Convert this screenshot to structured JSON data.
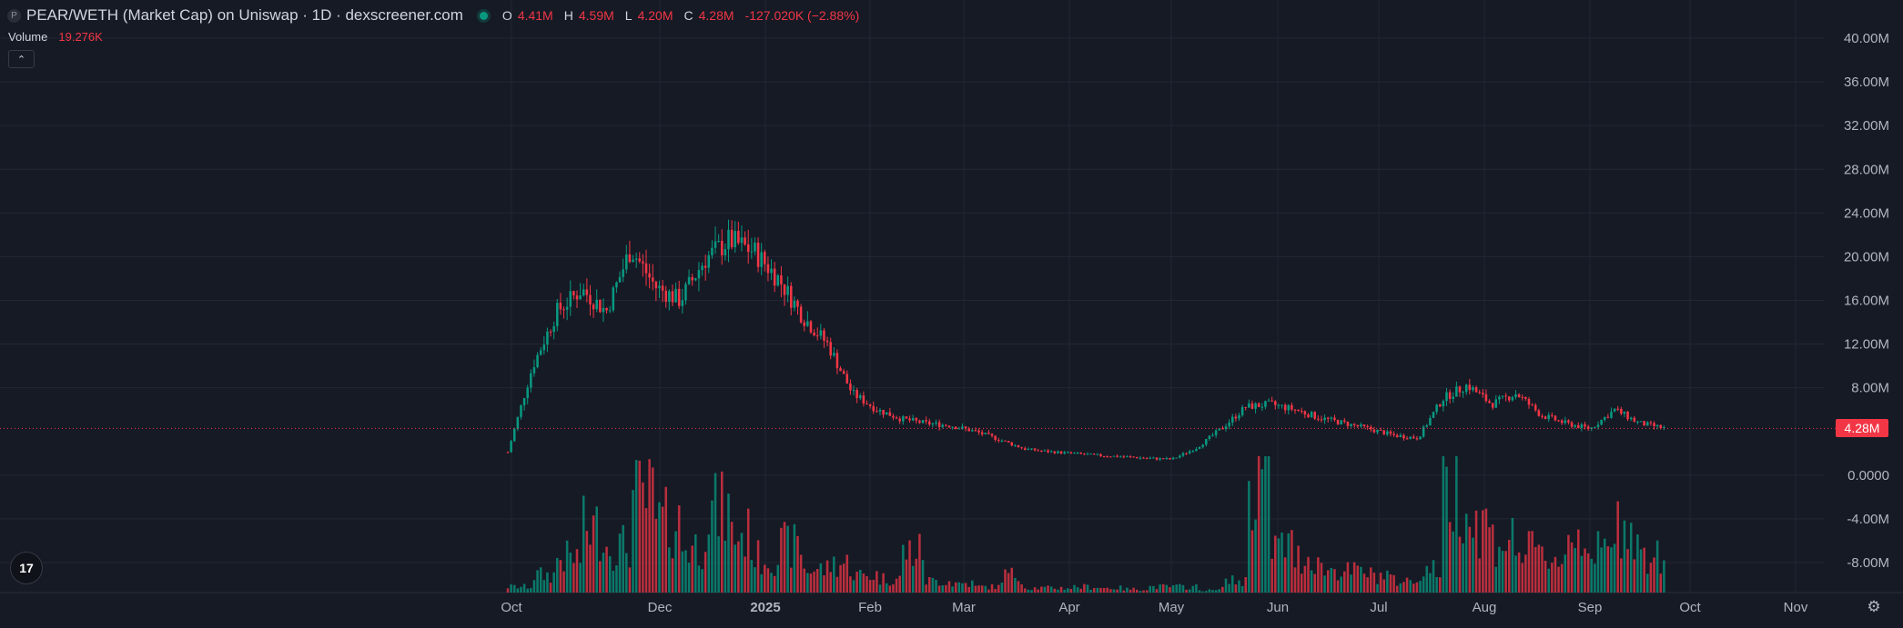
{
  "legend": {
    "token_icon": "P",
    "title": "PEAR/WETH (Market Cap) on Uniswap · 1D · dexscreener.com",
    "o_label": "O",
    "o_value": "4.41M",
    "h_label": "H",
    "h_value": "4.59M",
    "l_label": "L",
    "l_value": "4.20M",
    "c_label": "C",
    "c_value": "4.28M",
    "change": "-127.020K (−2.88%)"
  },
  "volume_legend": {
    "label": "Volume",
    "value": "19.276K"
  },
  "collapse_icon": "chevron-up-icon",
  "logo_text": "17",
  "settings_icon": "gear-icon",
  "current_price_label": "4.28M",
  "colors": {
    "up": "#089981",
    "down": "#f23645",
    "grid": "#232734",
    "background": "#161a25"
  },
  "chart_data": {
    "type": "candlestick",
    "title": "PEAR/WETH (Market Cap) on Uniswap · 1D · dexscreener.com",
    "y_ticks": [
      "40.00M",
      "36.00M",
      "32.00M",
      "28.00M",
      "24.00M",
      "20.00M",
      "16.00M",
      "12.00M",
      "8.00M",
      "0.0000",
      "-4.00M",
      "-8.00M"
    ],
    "x_ticks": [
      "Oct",
      "Dec",
      "2025",
      "Feb",
      "Mar",
      "Apr",
      "May",
      "Jun",
      "Jul",
      "Aug",
      "Sep",
      "Oct",
      "Nov"
    ],
    "ylim": [
      -10,
      40.5
    ],
    "current_price": 4.28,
    "market_cap_M": [
      [
        3.2,
        1
      ],
      [
        11.0,
        8.8
      ],
      [
        16.0,
        14.0
      ],
      [
        18.0,
        16.0
      ],
      [
        16.5,
        13.5
      ],
      [
        22.5,
        19.0
      ],
      [
        20.0,
        14.5
      ],
      [
        19.0,
        13.0
      ],
      [
        22.5,
        17.0
      ],
      [
        23.0,
        20.0
      ],
      [
        22.0,
        19.0
      ],
      [
        21.0,
        15.0
      ],
      [
        15.0,
        14.0
      ],
      [
        13.0,
        11.0
      ],
      [
        8.0,
        7.0
      ],
      [
        6.5,
        5.5
      ],
      [
        5.5,
        4.8
      ],
      [
        5.0,
        4.5
      ],
      [
        4.8,
        4.3
      ],
      [
        4.2,
        3.8
      ],
      [
        3.5,
        3.0
      ],
      [
        2.6,
        2.2
      ],
      [
        2.3,
        2.0
      ],
      [
        2.1,
        1.9
      ],
      [
        1.9,
        1.7
      ],
      [
        1.8,
        1.6
      ],
      [
        1.6,
        1.5
      ],
      [
        1.5,
        1.4
      ],
      [
        3.0,
        2.0
      ],
      [
        4.5,
        4.0
      ],
      [
        6.5,
        6.0
      ],
      [
        6.8,
        6.2
      ],
      [
        6.5,
        5.5
      ],
      [
        5.5,
        5.0
      ],
      [
        5.0,
        4.5
      ],
      [
        4.5,
        4.0
      ],
      [
        3.8,
        3.5
      ],
      [
        3.5,
        3.3
      ],
      [
        8.0,
        6.0
      ],
      [
        9.0,
        7.5
      ],
      [
        7.0,
        6.0
      ],
      [
        8.0,
        7.0
      ],
      [
        6.0,
        5.0
      ],
      [
        5.0,
        4.5
      ],
      [
        4.5,
        4.0
      ],
      [
        6.5,
        5.5
      ],
      [
        5.0,
        4.5
      ],
      [
        4.4,
        4.2
      ]
    ],
    "volume_relative": [
      0.05,
      0.15,
      0.3,
      0.55,
      0.4,
      0.8,
      0.6,
      0.4,
      0.7,
      0.5,
      0.3,
      0.4,
      0.2,
      0.25,
      0.15,
      0.12,
      0.35,
      0.1,
      0.08,
      0.05,
      0.15,
      0.04,
      0.04,
      0.05,
      0.04,
      0.03,
      0.05,
      0.05,
      0.02,
      0.1,
      1.0,
      0.4,
      0.3,
      0.2,
      0.18,
      0.15,
      0.1,
      0.2,
      0.9,
      0.6,
      0.45,
      0.35,
      0.3,
      0.5,
      0.35,
      0.6,
      0.3,
      0.2
    ],
    "xlabel": "",
    "ylabel": ""
  }
}
